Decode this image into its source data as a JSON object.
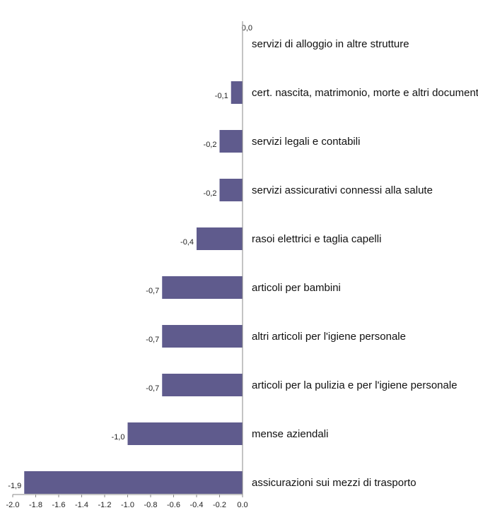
{
  "chart_data": {
    "type": "bar",
    "orientation": "horizontal",
    "title": "",
    "xlabel": "",
    "ylabel": "",
    "xlim": [
      -2.0,
      0.0
    ],
    "categories": [
      "servizi di alloggio in altre strutture",
      "cert. nascita, matrimonio, morte e altri documenti amm.",
      "servizi legali e contabili",
      "servizi assicurativi connessi alla salute",
      "rasoi elettrici e taglia capelli",
      "articoli per bambini",
      "altri articoli per l'igiene personale",
      "articoli per la pulizia e per l'igiene personale",
      "mense aziendali",
      "assicurazioni sui mezzi di trasporto"
    ],
    "values": [
      0.0,
      -0.1,
      -0.2,
      -0.2,
      -0.4,
      -0.7,
      -0.7,
      -0.7,
      -1.0,
      -1.9
    ],
    "value_labels": [
      "0,0",
      "-0,1",
      "-0,2",
      "-0,2",
      "-0,4",
      "-0,7",
      "-0,7",
      "-0,7",
      "-1,0",
      "-1,9"
    ],
    "x_ticks": [
      -2.0,
      -1.8,
      -1.6,
      -1.4,
      -1.2,
      -1.0,
      -0.8,
      -0.6,
      -0.4,
      -0.2,
      0.0
    ],
    "x_tick_labels": [
      "-2.0",
      "-1.8",
      "-1.6",
      "-1.4",
      "-1.2",
      "-1.0",
      "-0.8",
      "-0.6",
      "-0.4",
      "-0.2",
      "0.0"
    ],
    "grid": false,
    "legend": "none",
    "bar_color": "#5f5b8d",
    "axis_color": "#8a8a8a"
  }
}
